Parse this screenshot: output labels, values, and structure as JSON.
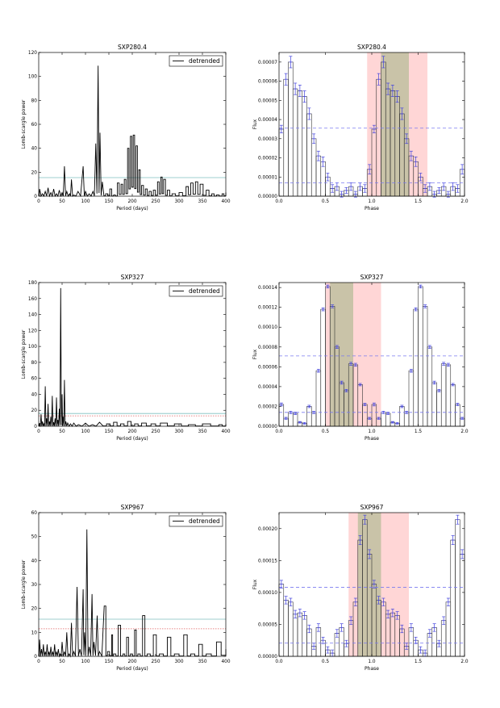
{
  "chart_data": [
    {
      "type": "line",
      "title": "SXP280.4",
      "xlabel": "Period (days)",
      "ylabel": "Lomb-scargle power",
      "xlim": [
        0,
        400
      ],
      "ylim": [
        0,
        120
      ],
      "xticks": [
        0,
        50,
        100,
        150,
        200,
        250,
        300,
        350,
        400
      ],
      "yticks": [
        0,
        20,
        40,
        60,
        80,
        100,
        120
      ],
      "ytick_labels": [
        "0",
        "20",
        "40",
        "60",
        "80",
        "100",
        "120"
      ],
      "legend": {
        "label": "detrended",
        "position": "top-right"
      },
      "hlines": [
        {
          "y": 15.5,
          "style": "solid",
          "color": "#7fbfbf"
        }
      ],
      "peaks": [
        [
          2,
          6
        ],
        [
          8,
          2
        ],
        [
          14,
          4
        ],
        [
          20,
          7
        ],
        [
          26,
          3
        ],
        [
          32,
          6
        ],
        [
          38,
          2
        ],
        [
          44,
          5
        ],
        [
          50,
          3
        ],
        [
          55,
          25
        ],
        [
          60,
          4
        ],
        [
          66,
          2
        ],
        [
          70,
          14
        ],
        [
          75,
          1
        ],
        [
          84,
          4
        ],
        [
          95,
          25
        ],
        [
          100,
          4
        ],
        [
          108,
          2
        ],
        [
          116,
          4
        ],
        [
          122,
          44
        ],
        [
          127,
          109
        ],
        [
          131,
          53
        ],
        [
          136,
          12
        ],
        [
          143,
          2
        ],
        [
          152,
          6
        ],
        [
          160,
          1
        ],
        [
          168,
          11
        ],
        [
          176,
          10
        ],
        [
          183,
          14
        ],
        [
          190,
          40
        ],
        [
          196,
          50
        ],
        [
          202,
          51
        ],
        [
          208,
          42
        ],
        [
          214,
          22
        ],
        [
          220,
          9
        ],
        [
          228,
          6
        ],
        [
          236,
          4
        ],
        [
          245,
          5
        ],
        [
          254,
          12
        ],
        [
          261,
          16
        ],
        [
          267,
          14
        ],
        [
          275,
          5
        ],
        [
          285,
          2
        ],
        [
          300,
          3
        ],
        [
          315,
          8
        ],
        [
          325,
          11
        ],
        [
          335,
          12
        ],
        [
          345,
          10
        ],
        [
          358,
          5
        ],
        [
          370,
          2
        ],
        [
          380,
          1
        ],
        [
          392,
          2
        ],
        [
          400,
          3
        ]
      ],
      "series": [
        {
          "name": "detrended",
          "color": "#000000"
        }
      ]
    },
    {
      "type": "bar",
      "title": "SXP280.4",
      "xlabel": "Phase",
      "ylabel": "Flux",
      "xlim": [
        0,
        2
      ],
      "ylim": [
        0,
        7.5e-05
      ],
      "xticks": [
        0.0,
        0.5,
        1.0,
        1.5,
        2.0
      ],
      "xtick_labels": [
        "0.0",
        "0.5",
        "1.0",
        "1.5",
        "2.0"
      ],
      "yticks": [
        0,
        1e-05,
        2e-05,
        3e-05,
        4e-05,
        5e-05,
        6e-05,
        7e-05
      ],
      "ytick_labels": [
        "0.00000",
        "0.00001",
        "0.00002",
        "0.00003",
        "0.00004",
        "0.00005",
        "0.00006",
        "0.00007"
      ],
      "hlines": [
        {
          "y": 3.55e-05,
          "style": "dashed",
          "color": "#7a7af0"
        },
        {
          "y": 7e-06,
          "style": "dashed",
          "color": "#7a7af0"
        }
      ],
      "spans": [
        {
          "x0": 0.95,
          "x1": 1.6,
          "color": "#ffd6d6"
        },
        {
          "x0": 1.1,
          "x1": 1.4,
          "color": "#c9c3a8"
        }
      ],
      "values": [
        3.5e-05,
        6.1e-05,
        7e-05,
        5.6e-05,
        5.5e-05,
        5.2e-05,
        4.3e-05,
        3e-05,
        2.1e-05,
        1.8e-05,
        1e-05,
        4e-06,
        5e-06,
        1e-06,
        3e-06,
        5e-06,
        1e-06,
        5e-06,
        4e-06,
        1.4e-05
      ],
      "errors": [
        2e-06,
        3e-06,
        3e-06,
        3e-06,
        3e-06,
        3e-06,
        3e-06,
        2.5e-06,
        2.5e-06,
        2.5e-06,
        2e-06,
        2e-06,
        2e-06,
        1.5e-06,
        1.5e-06,
        2e-06,
        1.5e-06,
        2e-06,
        2e-06,
        2.5e-06
      ]
    },
    {
      "type": "line",
      "title": "SXP327",
      "xlabel": "Period (days)",
      "ylabel": "Lomb-scargle power",
      "xlim": [
        0,
        400
      ],
      "ylim": [
        0,
        180
      ],
      "xticks": [
        0,
        50,
        100,
        150,
        200,
        250,
        300,
        350,
        400
      ],
      "yticks": [
        0,
        20,
        40,
        60,
        80,
        100,
        120,
        140,
        160,
        180
      ],
      "ytick_labels": [
        "0",
        "20",
        "40",
        "60",
        "80",
        "100",
        "120",
        "140",
        "160",
        "180"
      ],
      "legend": {
        "label": "detrended",
        "position": "top-right"
      },
      "hlines": [
        {
          "y": 16,
          "style": "solid",
          "color": "#7fbfbf"
        },
        {
          "y": 13,
          "style": "dotted",
          "color": "#e06060"
        }
      ],
      "peaks": [
        [
          2,
          4
        ],
        [
          5,
          15
        ],
        [
          8,
          6
        ],
        [
          11,
          3
        ],
        [
          14,
          50
        ],
        [
          17,
          10
        ],
        [
          20,
          28
        ],
        [
          23,
          6
        ],
        [
          26,
          12
        ],
        [
          29,
          38
        ],
        [
          32,
          5
        ],
        [
          35,
          10
        ],
        [
          38,
          36
        ],
        [
          41,
          8
        ],
        [
          44,
          22
        ],
        [
          47,
          173
        ],
        [
          50,
          40
        ],
        [
          52,
          12
        ],
        [
          55,
          58
        ],
        [
          58,
          6
        ],
        [
          62,
          4
        ],
        [
          68,
          3
        ],
        [
          75,
          4
        ],
        [
          85,
          2
        ],
        [
          100,
          4
        ],
        [
          115,
          2
        ],
        [
          130,
          5
        ],
        [
          145,
          3
        ],
        [
          160,
          5
        ],
        [
          175,
          3
        ],
        [
          190,
          6
        ],
        [
          205,
          3
        ],
        [
          220,
          4
        ],
        [
          240,
          3
        ],
        [
          260,
          4
        ],
        [
          290,
          3
        ],
        [
          320,
          2
        ],
        [
          350,
          3
        ],
        [
          385,
          2
        ],
        [
          400,
          2
        ]
      ],
      "series": [
        {
          "name": "detrended",
          "color": "#000000"
        }
      ]
    },
    {
      "type": "bar",
      "title": "SXP327",
      "xlabel": "Phase",
      "ylabel": "Flux",
      "xlim": [
        0,
        2
      ],
      "ylim": [
        0,
        0.000145
      ],
      "xticks": [
        0.0,
        0.5,
        1.0,
        1.5,
        2.0
      ],
      "xtick_labels": [
        "0.0",
        "0.5",
        "1.0",
        "1.5",
        "2.0"
      ],
      "yticks": [
        0,
        2e-05,
        4e-05,
        6e-05,
        8e-05,
        0.0001,
        0.00012,
        0.00014
      ],
      "ytick_labels": [
        "0.00000",
        "0.00002",
        "0.00004",
        "0.00006",
        "0.00008",
        "0.00010",
        "0.00012",
        "0.00014"
      ],
      "hlines": [
        {
          "y": 7.1e-05,
          "style": "dashed",
          "color": "#7a7af0"
        },
        {
          "y": 1.4e-05,
          "style": "dashed",
          "color": "#7a7af0"
        }
      ],
      "spans": [
        {
          "x0": 0.5,
          "x1": 1.1,
          "color": "#ffd6d6"
        },
        {
          "x0": 0.55,
          "x1": 0.8,
          "color": "#c9c3a8"
        }
      ],
      "values": [
        2.2e-05,
        8e-06,
        1.4e-05,
        1.3e-05,
        4e-06,
        3e-06,
        2e-05,
        1.4e-05,
        5.6e-05,
        0.000118,
        0.000141,
        0.000121,
        8e-05,
        4.4e-05,
        3.6e-05,
        6.3e-05,
        6.2e-05,
        4.2e-05,
        2.2e-05,
        8e-06
      ],
      "errors": [
        1.5e-06,
        1e-06,
        1.2e-06,
        1.2e-06,
        8e-07,
        8e-07,
        1.2e-06,
        1.2e-06,
        1.5e-06,
        1.5e-06,
        1.5e-06,
        1.5e-06,
        1.5e-06,
        1.5e-06,
        1.2e-06,
        1.5e-06,
        1.5e-06,
        1.2e-06,
        1.2e-06,
        1e-06
      ]
    },
    {
      "type": "line",
      "title": "SXP967",
      "xlabel": "Period (days)",
      "ylabel": "Lomb-scargle power",
      "xlim": [
        0,
        400
      ],
      "ylim": [
        0,
        60
      ],
      "xticks": [
        0,
        50,
        100,
        150,
        200,
        250,
        300,
        350,
        400
      ],
      "yticks": [
        0,
        10,
        20,
        30,
        40,
        50,
        60
      ],
      "ytick_labels": [
        "0",
        "10",
        "20",
        "30",
        "40",
        "50",
        "60"
      ],
      "legend": {
        "label": "detrended",
        "position": "top-right"
      },
      "hlines": [
        {
          "y": 15.5,
          "style": "solid",
          "color": "#7fbfbf"
        },
        {
          "y": 11.5,
          "style": "dotted",
          "color": "#e06060"
        }
      ],
      "peaks": [
        [
          2,
          7
        ],
        [
          6,
          3
        ],
        [
          10,
          5
        ],
        [
          14,
          2
        ],
        [
          18,
          5
        ],
        [
          22,
          2
        ],
        [
          26,
          4
        ],
        [
          30,
          2
        ],
        [
          34,
          5
        ],
        [
          38,
          2
        ],
        [
          42,
          3
        ],
        [
          46,
          1
        ],
        [
          50,
          6
        ],
        [
          55,
          2
        ],
        [
          60,
          10
        ],
        [
          65,
          1
        ],
        [
          70,
          14
        ],
        [
          75,
          2
        ],
        [
          82,
          29
        ],
        [
          88,
          3
        ],
        [
          95,
          28
        ],
        [
          98,
          10
        ],
        [
          103,
          53
        ],
        [
          108,
          4
        ],
        [
          114,
          26
        ],
        [
          118,
          6
        ],
        [
          125,
          17
        ],
        [
          130,
          2
        ],
        [
          140,
          21
        ],
        [
          147,
          2
        ],
        [
          156,
          9
        ],
        [
          160,
          1
        ],
        [
          170,
          13
        ],
        [
          180,
          1
        ],
        [
          188,
          8
        ],
        [
          196,
          1
        ],
        [
          205,
          11
        ],
        [
          212,
          1
        ],
        [
          222,
          17
        ],
        [
          232,
          1
        ],
        [
          245,
          9
        ],
        [
          258,
          1
        ],
        [
          275,
          8
        ],
        [
          290,
          1
        ],
        [
          310,
          9
        ],
        [
          325,
          1
        ],
        [
          342,
          5
        ],
        [
          358,
          1
        ],
        [
          380,
          6
        ],
        [
          400,
          3
        ]
      ],
      "series": [
        {
          "name": "detrended",
          "color": "#000000"
        }
      ]
    },
    {
      "type": "bar",
      "title": "SXP967",
      "xlabel": "Phase",
      "ylabel": "Flux",
      "xlim": [
        0,
        2
      ],
      "ylim": [
        0,
        0.000225
      ],
      "xticks": [
        0.0,
        0.5,
        1.0,
        1.5,
        2.0
      ],
      "xtick_labels": [
        "0.0",
        "0.5",
        "1.0",
        "1.5",
        "2.0"
      ],
      "yticks": [
        0,
        5e-05,
        0.0001,
        0.00015,
        0.0002
      ],
      "ytick_labels": [
        "0.00000",
        "0.00005",
        "0.00010",
        "0.00015",
        "0.00020"
      ],
      "hlines": [
        {
          "y": 0.000108,
          "style": "dashed",
          "color": "#7a7af0"
        },
        {
          "y": 2.1e-05,
          "style": "dashed",
          "color": "#7a7af0"
        }
      ],
      "spans": [
        {
          "x0": 0.75,
          "x1": 1.4,
          "color": "#ffd6d6"
        },
        {
          "x0": 0.85,
          "x1": 1.1,
          "color": "#c9c3a8"
        }
      ],
      "values": [
        0.000113,
        8.8e-05,
        8.5e-05,
        6.6e-05,
        6.8e-05,
        6.4e-05,
        4.3e-05,
        1.6e-05,
        4.5e-05,
        2.5e-05,
        1e-05,
        5e-06,
        3.6e-05,
        4.5e-05,
        2e-05,
        5.6e-05,
        8.5e-05,
        0.000182,
        0.000214,
        0.00016
      ],
      "errors": [
        6e-06,
        6e-06,
        6e-06,
        6e-06,
        6e-06,
        6e-06,
        6e-06,
        5e-06,
        6e-06,
        5e-06,
        5e-06,
        5e-06,
        6e-06,
        6e-06,
        5e-06,
        6e-06,
        6e-06,
        7e-06,
        7e-06,
        7e-06
      ]
    }
  ]
}
